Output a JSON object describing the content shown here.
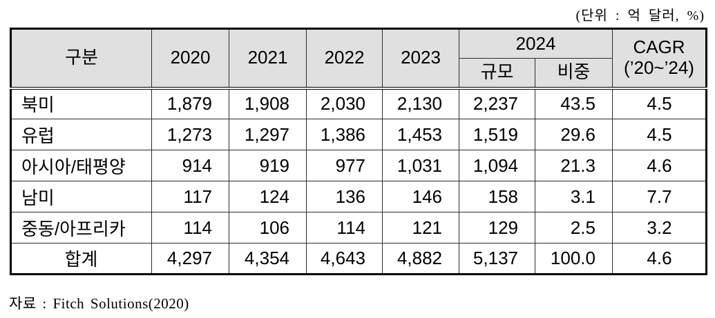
{
  "unit_label": "(단위 : 억 달러, %)",
  "source_note": "자료 : Fitch Solutions(2020)",
  "colors": {
    "header_bg": "#e0e0e0",
    "grid_line": "#2b2b2b",
    "frame": "#000000"
  },
  "table": {
    "header": {
      "category": "구분",
      "years": [
        "2020",
        "2021",
        "2022",
        "2023"
      ],
      "group_2024": "2024",
      "sub_scale": "규모",
      "sub_share": "비중",
      "cagr_line1": "CAGR",
      "cagr_line2": "(’20~’24)"
    },
    "rows": [
      {
        "label": "북미",
        "is_total": false,
        "values": [
          "1,879",
          "1,908",
          "2,030",
          "2,130",
          "2,237",
          "43.5",
          "4.5"
        ]
      },
      {
        "label": "유럽",
        "is_total": false,
        "values": [
          "1,273",
          "1,297",
          "1,386",
          "1,453",
          "1,519",
          "29.6",
          "4.5"
        ]
      },
      {
        "label": "아시아/태평양",
        "is_total": false,
        "values": [
          "914",
          "919",
          "977",
          "1,031",
          "1,094",
          "21.3",
          "4.6"
        ]
      },
      {
        "label": "남미",
        "is_total": false,
        "values": [
          "117",
          "124",
          "136",
          "146",
          "158",
          "3.1",
          "7.7"
        ]
      },
      {
        "label": "중동/아프리카",
        "is_total": false,
        "values": [
          "114",
          "106",
          "114",
          "121",
          "129",
          "2.5",
          "3.2"
        ]
      },
      {
        "label": "합계",
        "is_total": true,
        "values": [
          "4,297",
          "4,354",
          "4,643",
          "4,882",
          "5,137",
          "100.0",
          "4.6"
        ]
      }
    ]
  }
}
